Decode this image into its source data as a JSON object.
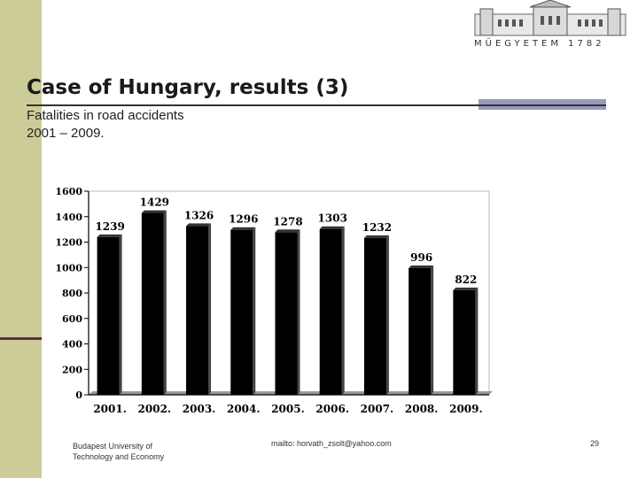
{
  "logo": {
    "text": "MŰEGYETEM 1782"
  },
  "slide": {
    "title": "Case of Hungary, results (3)",
    "subtitle_line1": "Fatalities in road accidents",
    "subtitle_line2": "2001 – 2009."
  },
  "footer": {
    "left_line1": "Budapest University of",
    "left_line2": "Technology and Economy",
    "email": "mailto: horvath_zsolt@yahoo.com",
    "page": "29"
  },
  "colors": {
    "bar": "#000000",
    "side_strip": "#cccc99",
    "accent": "#5a2e3e"
  },
  "chart_data": {
    "type": "bar",
    "categories": [
      "2001.",
      "2002.",
      "2003.",
      "2004.",
      "2005.",
      "2006.",
      "2007.",
      "2008.",
      "2009."
    ],
    "values": [
      1239,
      1429,
      1326,
      1296,
      1278,
      1303,
      1232,
      996,
      822
    ],
    "yticks": [
      "0",
      "200",
      "400",
      "600",
      "800",
      "1000",
      "1200",
      "1400",
      "1600"
    ],
    "ylim": [
      0,
      1600
    ],
    "grid": false,
    "legend": "none"
  }
}
